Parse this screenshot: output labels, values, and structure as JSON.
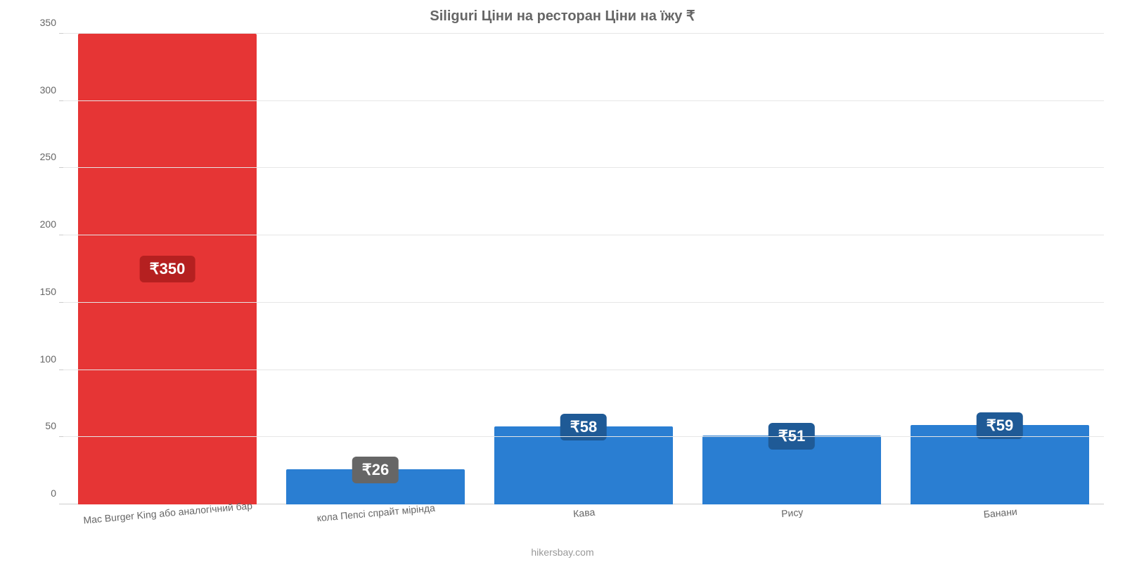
{
  "chart": {
    "type": "bar",
    "title": "Siliguri Ціни на ресторан Ціни на їжу ₹",
    "title_fontsize": 20,
    "title_color": "#666666",
    "background_color": "#ffffff",
    "grid_color": "#e6e6e6",
    "axis_color": "#cccccc",
    "tick_label_color": "#666666",
    "tick_label_fontsize": 14,
    "ylim": [
      0,
      350
    ],
    "ytick_step": 50,
    "yticks": [
      0,
      50,
      100,
      150,
      200,
      250,
      300,
      350
    ],
    "bar_width": 0.86,
    "value_label_prefix": "₹",
    "value_badge_fontsize": 22,
    "categories": [
      "Mac Burger King або аналогічний бар",
      "кола Пепсі спрайт мірінда",
      "Кава",
      "Рису",
      "Банани"
    ],
    "values": [
      350,
      26,
      58,
      51,
      59
    ],
    "bar_colors": [
      "#e63535",
      "#2a7ed2",
      "#2a7ed2",
      "#2a7ed2",
      "#2a7ed2"
    ],
    "badge_colors": [
      "#b52020",
      "#666666",
      "#1f5a96",
      "#1f5a96",
      "#1f5a96"
    ],
    "badge_text_color": "#ffffff",
    "source_text": "hikersbay.com",
    "source_color": "#999999",
    "source_fontsize": 14
  }
}
